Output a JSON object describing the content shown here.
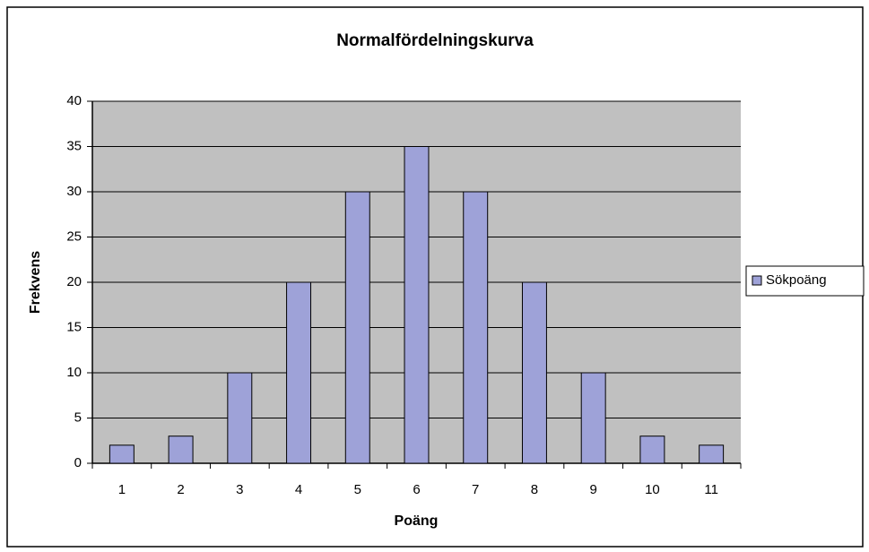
{
  "chart_data": {
    "type": "bar",
    "title": "Normalfördelningskurva",
    "x_label": "Poäng",
    "y_label": "Frekvens",
    "categories": [
      "1",
      "2",
      "3",
      "4",
      "5",
      "6",
      "7",
      "8",
      "9",
      "10",
      "11"
    ],
    "series": [
      {
        "name": "Sökpoäng",
        "color": "#9ea2d8",
        "values": [
          2,
          3,
          10,
          20,
          30,
          35,
          30,
          20,
          10,
          3,
          2
        ]
      }
    ],
    "ylim": [
      0,
      40
    ],
    "yticks": [
      0,
      5,
      10,
      15,
      20,
      25,
      30,
      35,
      40
    ],
    "grid": true,
    "legend": "right"
  }
}
